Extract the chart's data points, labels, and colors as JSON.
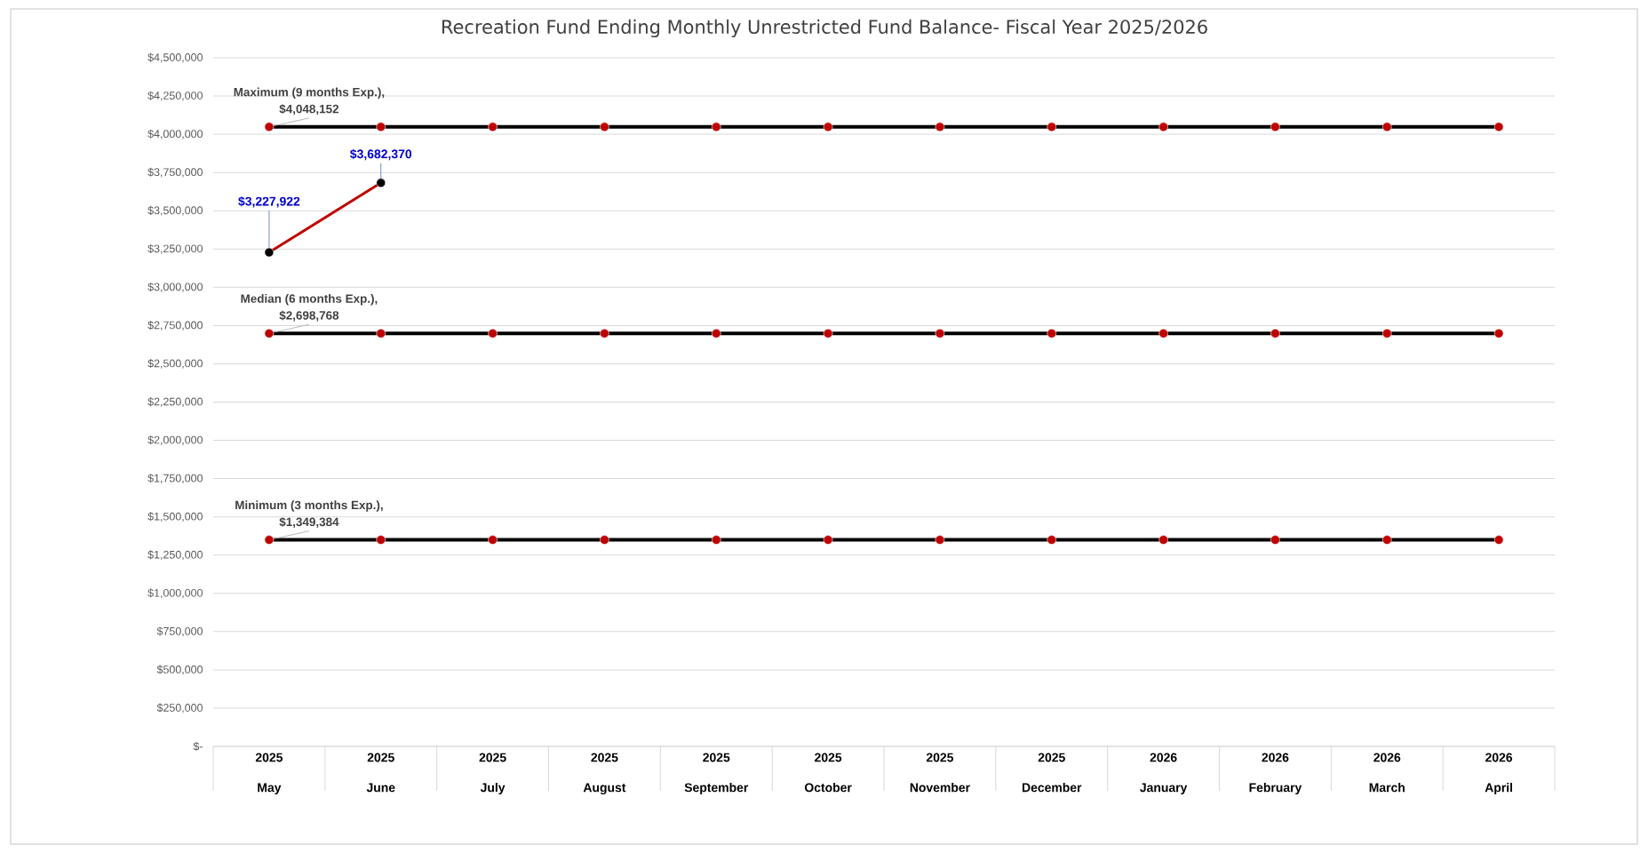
{
  "chart_data": {
    "type": "line",
    "title": "Recreation Fund Ending Monthly Unrestricted Fund Balance- Fiscal Year 2025/2026",
    "categories": [
      "2025 May",
      "2025 June",
      "2025 July",
      "2025 August",
      "2025 September",
      "2025 October",
      "2025 November",
      "2025 December",
      "2026 January",
      "2026 February",
      "2026 March",
      "2026 April"
    ],
    "series": [
      {
        "name": "Maximum (9 months Exp.),",
        "color": "#000000",
        "colors": [
          "#c00000",
          "#c00000",
          "#c00000",
          "#c00000",
          "#c00000",
          "#c00000",
          "#c00000",
          "#c00000",
          "#c00000",
          "#c00000",
          "#c00000",
          "#c00000"
        ],
        "values": [
          4048152,
          4048152,
          4048152,
          4048152,
          4048152,
          4048152,
          4048152,
          4048152,
          4048152,
          4048152,
          4048152,
          4048152
        ],
        "value_labels": [
          "$4,048,152",
          null,
          null,
          null,
          null,
          null,
          null,
          null,
          null,
          null,
          null,
          null
        ]
      },
      {
        "name": "Median (6 months Exp.),",
        "color": "#000000",
        "colors": [
          "#c00000",
          "#c00000",
          "#c00000",
          "#c00000",
          "#c00000",
          "#c00000",
          "#c00000",
          "#c00000",
          "#c00000",
          "#c00000",
          "#c00000",
          "#c00000"
        ],
        "values": [
          2698768,
          2698768,
          2698768,
          2698768,
          2698768,
          2698768,
          2698768,
          2698768,
          2698768,
          2698768,
          2698768,
          2698768
        ],
        "value_labels": [
          "$2,698,768",
          null,
          null,
          null,
          null,
          null,
          null,
          null,
          null,
          null,
          null,
          null
        ]
      },
      {
        "name": "Minimum (3 months Exp.),",
        "color": "#000000",
        "colors": [
          "#c00000",
          "#c00000",
          "#c00000",
          "#c00000",
          "#c00000",
          "#c00000",
          "#c00000",
          "#c00000",
          "#c00000",
          "#c00000",
          "#c00000",
          "#c00000"
        ],
        "values": [
          1349384,
          1349384,
          1349384,
          1349384,
          1349384,
          1349384,
          1349384,
          1349384,
          1349384,
          1349384,
          1349384,
          1349384
        ],
        "value_labels": [
          "$1,349,384",
          null,
          null,
          null,
          null,
          null,
          null,
          null,
          null,
          null,
          null,
          null
        ]
      },
      {
        "color": "#c00000",
        "colors": [
          "#000000",
          "#000000",
          null,
          null,
          null,
          null,
          null,
          null,
          null,
          null,
          null,
          null
        ],
        "values": [
          3227922,
          3682370,
          null,
          null,
          null,
          null,
          null,
          null,
          null,
          null,
          null,
          null
        ],
        "value_labels": [
          "$3,227,922",
          "$3,682,370",
          null,
          null,
          null,
          null,
          null,
          null,
          null,
          null,
          null,
          null
        ]
      }
    ],
    "ylim": [
      0,
      4500000
    ],
    "yticks": [
      {
        "value": 0,
        "label": "$-"
      },
      {
        "value": 250000,
        "label": "$250,000"
      },
      {
        "value": 500000,
        "label": "$500,000"
      },
      {
        "value": 750000,
        "label": "$750,000"
      },
      {
        "value": 1000000,
        "label": "$1,000,000"
      },
      {
        "value": 1250000,
        "label": "$1,250,000"
      },
      {
        "value": 1500000,
        "label": "$1,500,000"
      },
      {
        "value": 1750000,
        "label": "$1,750,000"
      },
      {
        "value": 2000000,
        "label": "$2,000,000"
      },
      {
        "value": 2250000,
        "label": "$2,250,000"
      },
      {
        "value": 2500000,
        "label": "$2,500,000"
      },
      {
        "value": 2750000,
        "label": "$2,750,000"
      },
      {
        "value": 3000000,
        "label": "$3,000,000"
      },
      {
        "value": 3250000,
        "label": "$3,250,000"
      },
      {
        "value": 3500000,
        "label": "$3,500,000"
      },
      {
        "value": 3750000,
        "label": "$3,750,000"
      },
      {
        "value": 4000000,
        "label": "$4,000,000"
      },
      {
        "value": 4250000,
        "label": "$4,250,000"
      },
      {
        "value": 4500000,
        "label": "$4,500,000"
      }
    ],
    "grid": "y",
    "marker": "circle",
    "line_style": "solid"
  }
}
